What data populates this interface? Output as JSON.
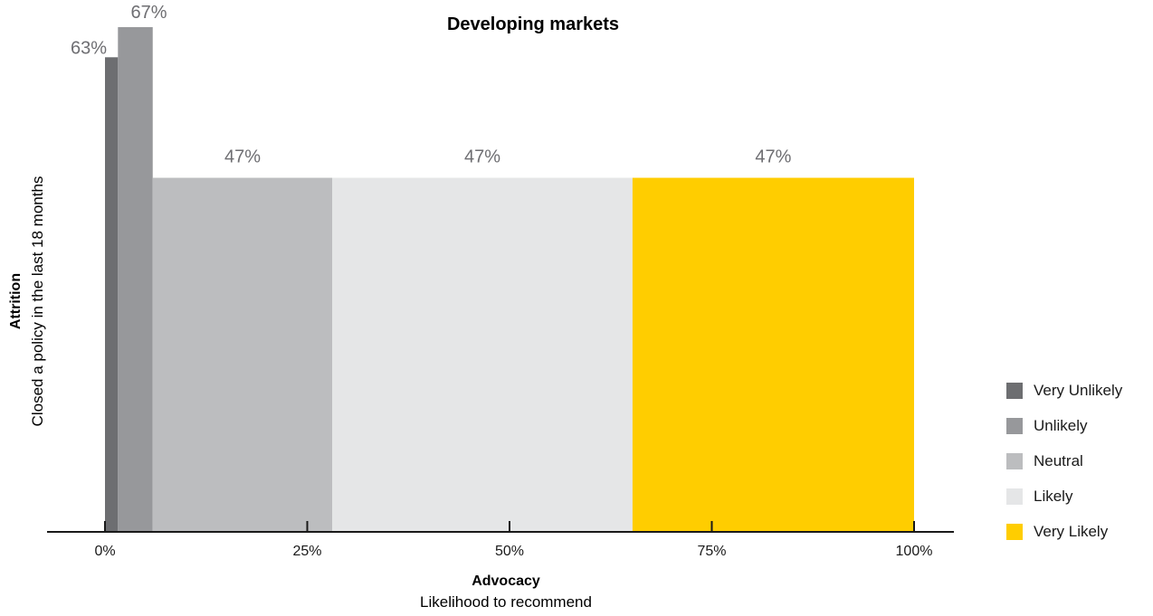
{
  "chart_data": {
    "type": "bar",
    "title": "Developing markets",
    "xlabel": "Advocacy",
    "xsublabel": "Likelihood to recommend",
    "ylabel": "Attrition",
    "ysublabel": "Closed a policy in the last 18 months",
    "x_ticks": [
      "0%",
      "25%",
      "50%",
      "75%",
      "100%"
    ],
    "x_tick_values": [
      0,
      25,
      50,
      75,
      100
    ],
    "xlim": [
      0,
      100
    ],
    "ylim": [
      0,
      70
    ],
    "series": [
      {
        "name": "Very Unlikely",
        "x_start": 0,
        "x_end": 1.6,
        "value": 63,
        "label": "63%",
        "color": "#6d6e71"
      },
      {
        "name": "Unlikely",
        "x_start": 1.6,
        "x_end": 5.9,
        "value": 67,
        "label": "67%",
        "color": "#97989b"
      },
      {
        "name": "Neutral",
        "x_start": 5.9,
        "x_end": 28.1,
        "value": 47,
        "label": "47%",
        "color": "#bcbdbf"
      },
      {
        "name": "Likely",
        "x_start": 28.1,
        "x_end": 65.2,
        "value": 47,
        "label": "47%",
        "color": "#e5e6e7"
      },
      {
        "name": "Very Likely",
        "x_start": 65.2,
        "x_end": 100,
        "value": 47,
        "label": "47%",
        "color": "#ffcd00"
      }
    ],
    "legend_position": "right"
  }
}
